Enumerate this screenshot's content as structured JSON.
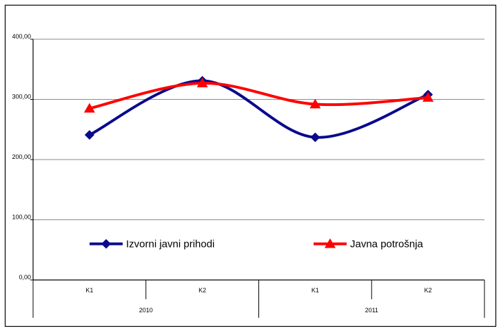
{
  "chart_data": {
    "type": "line",
    "title": "",
    "xlabel": "",
    "ylabel": "",
    "ylim": [
      0,
      400
    ],
    "y_ticks": [
      "0,00",
      "100,00",
      "200,00",
      "300,00",
      "400,00"
    ],
    "categories": [
      "K1",
      "K2",
      "K1",
      "K2"
    ],
    "category_groups": [
      {
        "label": "2010",
        "span": 2
      },
      {
        "label": "2011",
        "span": 2
      }
    ],
    "grid": true,
    "legend_position": "inside-bottom",
    "smooth": true,
    "series": [
      {
        "name": "Izvorni javni prihodi",
        "values": [
          241,
          331,
          237,
          308
        ],
        "color": "#0a0a8c",
        "marker": "diamond"
      },
      {
        "name": "Javna potrošnja",
        "values": [
          285,
          327,
          292,
          303
        ],
        "color": "#ff0000",
        "marker": "triangle"
      }
    ]
  }
}
